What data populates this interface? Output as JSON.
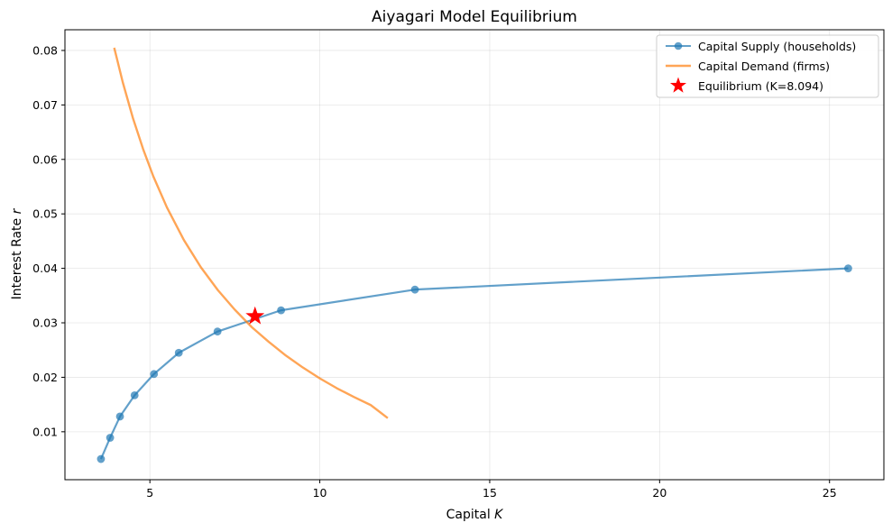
{
  "chart_data": {
    "type": "line",
    "title": "Aiyagari Model Equilibrium",
    "xlabel": "Capital",
    "xlabel_symbol": "K",
    "ylabel": "Interest Rate",
    "ylabel_symbol": "r",
    "xlim": [
      2.5,
      26.6
    ],
    "ylim": [
      0.0012,
      0.0838
    ],
    "xticks": [
      5,
      10,
      15,
      20,
      25
    ],
    "yticks": [
      0.01,
      0.02,
      0.03,
      0.04,
      0.05,
      0.06,
      0.07,
      0.08
    ],
    "xtick_labels": [
      "5",
      "10",
      "15",
      "20",
      "25"
    ],
    "ytick_labels": [
      "0.01",
      "0.02",
      "0.03",
      "0.04",
      "0.05",
      "0.06",
      "0.07",
      "0.08"
    ],
    "grid": true,
    "legend_position": "top-right",
    "series": [
      {
        "name": "Capital Supply (households)",
        "kind": "line-markers",
        "color": "#1f77b4",
        "x": [
          3.56,
          3.83,
          4.12,
          4.55,
          5.12,
          5.85,
          6.99,
          8.86,
          12.8,
          25.55
        ],
        "y": [
          0.005,
          0.0089,
          0.0128,
          0.0167,
          0.0206,
          0.0245,
          0.0284,
          0.0323,
          0.0361,
          0.04
        ]
      },
      {
        "name": "Capital Demand (firms)",
        "kind": "line",
        "color": "#ff7f0e",
        "x": [
          3.95,
          4.2,
          4.5,
          4.8,
          5.1,
          5.5,
          6.0,
          6.5,
          7.0,
          7.5,
          8.0,
          8.5,
          9.0,
          9.5,
          10.0,
          10.5,
          11.0,
          11.5,
          12.0
        ],
        "y": [
          0.0805,
          0.0742,
          0.0676,
          0.0619,
          0.0569,
          0.0512,
          0.0452,
          0.0402,
          0.036,
          0.0324,
          0.0292,
          0.0265,
          0.024,
          0.0218,
          0.0198,
          0.018,
          0.0164,
          0.0149,
          0.0125
        ]
      }
    ],
    "equilibrium": {
      "name": "Equilibrium (K=8.094)",
      "x": 8.094,
      "y": 0.0312,
      "color": "#ff0000",
      "marker": "star"
    }
  }
}
